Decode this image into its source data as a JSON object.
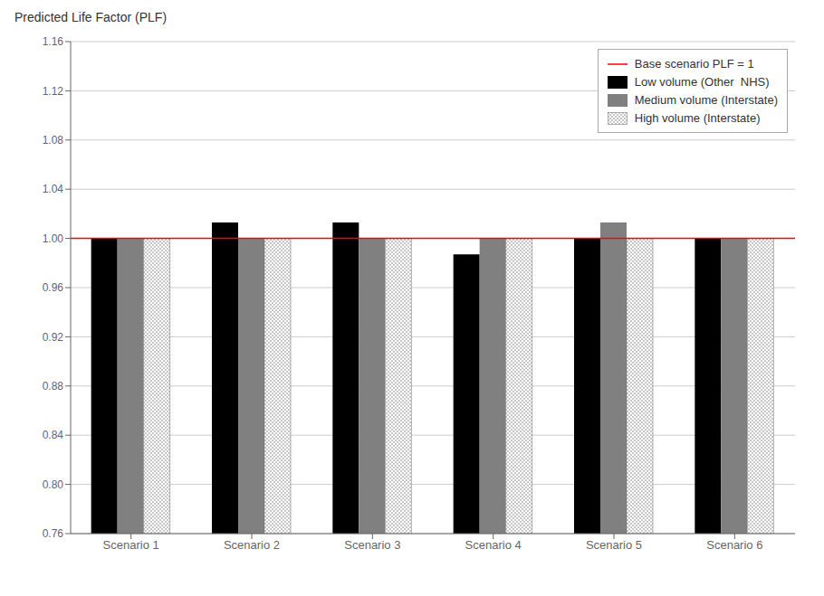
{
  "chart_data": {
    "type": "bar",
    "ylabel": "Predicted Life Factor (PLF)",
    "categories": [
      "Scenario 1",
      "Scenario 2",
      "Scenario 3",
      "Scenario 4",
      "Scenario 5",
      "Scenario 6"
    ],
    "series": [
      {
        "name": "Low volume (Other  NHS)",
        "color": "#000000",
        "values": [
          1.0,
          1.013,
          1.013,
          0.987,
          1.0,
          1.0
        ]
      },
      {
        "name": "Medium volume (Interstate)",
        "color": "#808080",
        "values": [
          1.0,
          1.0,
          1.0,
          1.0,
          1.013,
          1.0
        ]
      },
      {
        "name": "High volume (Interstate)",
        "color": "#666666",
        "values": [
          1.0,
          1.0,
          1.0,
          1.0,
          1.0,
          1.0
        ]
      }
    ],
    "baseline": {
      "value": 1.0,
      "label": "Base scenario PLF = 1",
      "color": "#ff0000"
    },
    "ylim": [
      0.76,
      1.16
    ],
    "yticks": [
      0.76,
      {
        "value": 0.8,
        "label": "0.80"
      },
      0.84,
      0.88,
      0.92,
      0.96,
      {
        "value": 1,
        "label": "1.00"
      },
      1.04,
      1.08,
      1.12,
      1.16
    ],
    "grid": true,
    "legend": "upper right"
  }
}
